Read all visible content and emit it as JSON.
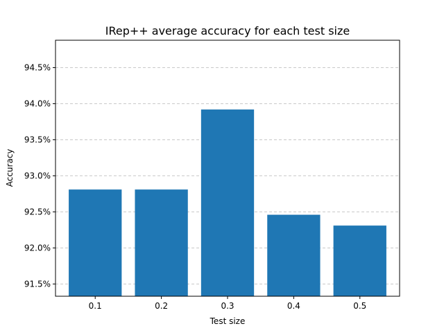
{
  "chart_data": {
    "type": "bar",
    "title": "IRep++ average accuracy for each test size",
    "xlabel": "Test size",
    "ylabel": "Accuracy",
    "categories": [
      "0.1",
      "0.2",
      "0.3",
      "0.4",
      "0.5"
    ],
    "values": [
      92.81,
      92.81,
      93.92,
      92.46,
      92.31
    ],
    "ylim": [
      91.33,
      94.88
    ],
    "yticks": [
      91.5,
      92.0,
      92.5,
      93.0,
      93.5,
      94.0,
      94.5
    ],
    "ytick_labels": [
      "91.5%",
      "92.0%",
      "92.5%",
      "93.0%",
      "93.5%",
      "94.0%",
      "94.5%"
    ],
    "grid": "y-dashed",
    "bar_color": "#1f77b4",
    "grid_color": "#c8c8c8"
  }
}
